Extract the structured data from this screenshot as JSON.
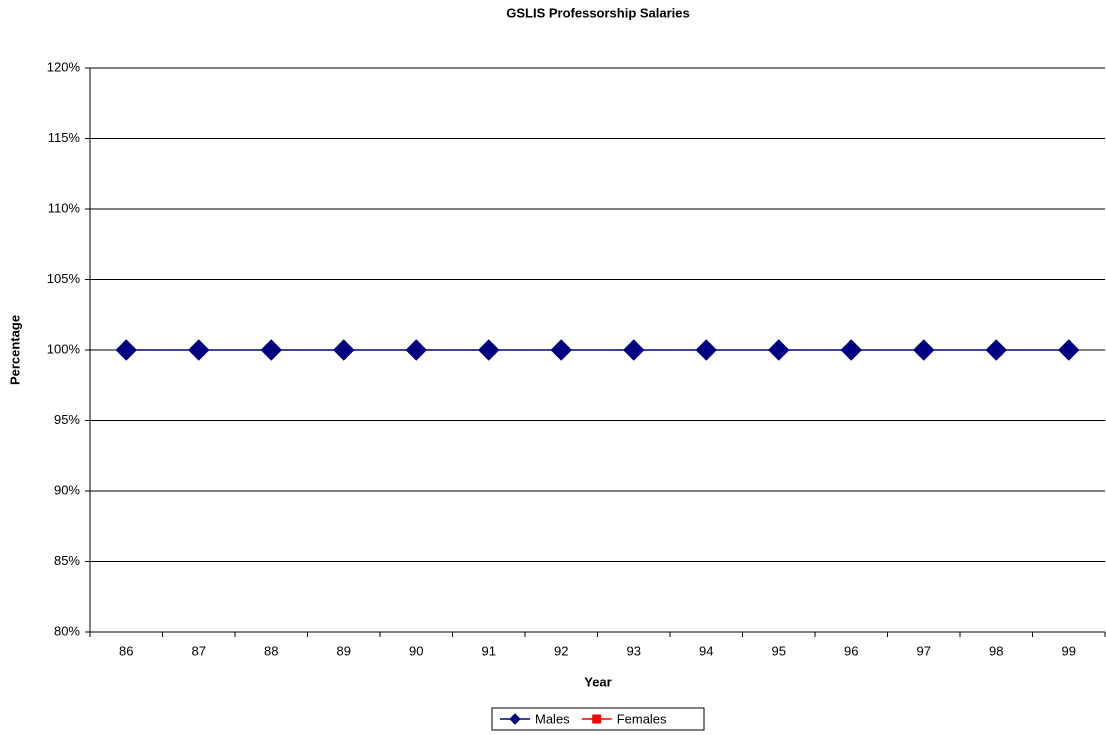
{
  "chart_data": {
    "type": "line",
    "title": "GSLIS Professorship Salaries",
    "x_label": "Year",
    "y_label": "Percentage",
    "categories": [
      "86",
      "87",
      "88",
      "89",
      "90",
      "91",
      "92",
      "93",
      "94",
      "95",
      "96",
      "97",
      "98",
      "99"
    ],
    "series": [
      {
        "name": "Males",
        "color": "#000080",
        "marker": "diamond",
        "values": [
          100,
          100,
          100,
          100,
          100,
          100,
          100,
          100,
          100,
          100,
          100,
          100,
          100,
          100
        ]
      },
      {
        "name": "Females",
        "color": "#ff0000",
        "marker": "square",
        "values": [
          null,
          null,
          null,
          null,
          null,
          null,
          null,
          null,
          null,
          null,
          null,
          null,
          null,
          null
        ]
      }
    ],
    "ylim": [
      80,
      120
    ],
    "yticks": [
      {
        "value": 80,
        "label": "80%"
      },
      {
        "value": 85,
        "label": "85%"
      },
      {
        "value": 90,
        "label": "90%"
      },
      {
        "value": 95,
        "label": "95%"
      },
      {
        "value": 100,
        "label": "100%"
      },
      {
        "value": 105,
        "label": "105%"
      },
      {
        "value": 110,
        "label": "110%"
      },
      {
        "value": 115,
        "label": "115%"
      },
      {
        "value": 120,
        "label": "120%"
      }
    ],
    "grid": true,
    "legend": "bottom"
  }
}
